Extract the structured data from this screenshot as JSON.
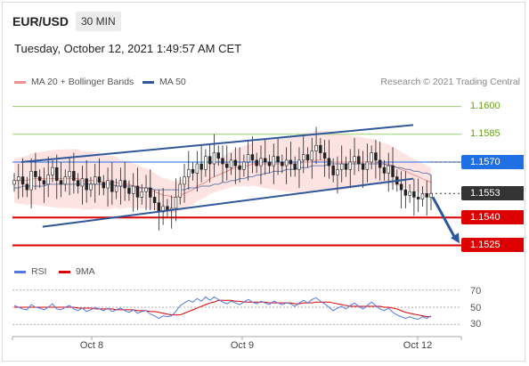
{
  "header": {
    "pair": "EUR/USD",
    "timeframe": "30 MIN",
    "timestamp": "Tuesday, October 12, 2021 1:49:57 AM CET"
  },
  "legend": {
    "ma20": "MA 20 + Bollinger Bands",
    "ma50": "MA 50",
    "credit": "Research © 2021 Trading Central",
    "rsi": "RSI",
    "rsi_ma": "9MA"
  },
  "colors": {
    "ma20": "#e9928f",
    "ma50": "#2f579b",
    "support": "#dd0000",
    "resistance": "#9bd06b",
    "pivot": "#1f6fe5",
    "last": "#333333",
    "rsi": "#5577dd",
    "rsi_ma": "#dd0000"
  },
  "chart_data": [
    {
      "type": "candlestick",
      "x_ticks": [
        "Oct 8",
        "Oct 9",
        "Oct 12"
      ],
      "y_axis": {
        "min": 1.1518,
        "max": 1.1608
      },
      "levels": [
        {
          "value": 1.16,
          "label": "1.1600",
          "kind": "resistance"
        },
        {
          "value": 1.1585,
          "label": "1.1585",
          "kind": "resistance"
        },
        {
          "value": 1.157,
          "label": "1.1570",
          "kind": "pivot"
        },
        {
          "value": 1.1553,
          "label": "1.1553",
          "kind": "last"
        },
        {
          "value": 1.154,
          "label": "1.1540",
          "kind": "support"
        },
        {
          "value": 1.1525,
          "label": "1.1525",
          "kind": "support"
        }
      ],
      "close": [
        1.156,
        1.1562,
        1.1558,
        1.1555,
        1.1565,
        1.1562,
        1.156,
        1.1558,
        1.1563,
        1.1567,
        1.156,
        1.1558,
        1.1562,
        1.1565,
        1.156,
        1.1557,
        1.1561,
        1.1555,
        1.1558,
        1.1562,
        1.1559,
        1.1556,
        1.156,
        1.1554,
        1.1557,
        1.156,
        1.1556,
        1.1553,
        1.1557,
        1.1551,
        1.1554,
        1.1556,
        1.1551,
        1.1548,
        1.1543,
        1.1546,
        1.1544,
        1.1545,
        1.1551,
        1.1558,
        1.1562,
        1.1566,
        1.1564,
        1.1569,
        1.1566,
        1.1573,
        1.1569,
        1.1575,
        1.1572,
        1.1569,
        1.1567,
        1.1571,
        1.1568,
        1.1566,
        1.157,
        1.1574,
        1.1571,
        1.1568,
        1.1572,
        1.157,
        1.1568,
        1.1573,
        1.157,
        1.1568,
        1.1571,
        1.1569,
        1.1566,
        1.1571,
        1.1574,
        1.1571,
        1.1576,
        1.1579,
        1.1575,
        1.1572,
        1.1568,
        1.1563,
        1.1566,
        1.1569,
        1.1566,
        1.157,
        1.1573,
        1.1569,
        1.1566,
        1.157,
        1.1575,
        1.1571,
        1.1567,
        1.1564,
        1.1568,
        1.1562,
        1.1558,
        1.1555,
        1.1552,
        1.1554,
        1.1551,
        1.155,
        1.1553,
        1.1551,
        1.1553
      ],
      "open": [
        1.1558,
        1.156,
        1.1562,
        1.1558,
        1.1555,
        1.1565,
        1.1562,
        1.156,
        1.1558,
        1.1563,
        1.1567,
        1.156,
        1.1558,
        1.1562,
        1.1565,
        1.156,
        1.1557,
        1.1561,
        1.1555,
        1.1558,
        1.1562,
        1.1559,
        1.1556,
        1.156,
        1.1554,
        1.1557,
        1.156,
        1.1556,
        1.1553,
        1.1557,
        1.1551,
        1.1554,
        1.1556,
        1.1551,
        1.1548,
        1.1543,
        1.1546,
        1.1544,
        1.1545,
        1.1551,
        1.1558,
        1.1562,
        1.1566,
        1.1564,
        1.1569,
        1.1566,
        1.1573,
        1.1569,
        1.1575,
        1.1572,
        1.1569,
        1.1567,
        1.1571,
        1.1568,
        1.1566,
        1.157,
        1.1574,
        1.1571,
        1.1568,
        1.1572,
        1.157,
        1.1568,
        1.1573,
        1.157,
        1.1568,
        1.1571,
        1.1569,
        1.1566,
        1.1571,
        1.1574,
        1.1571,
        1.1576,
        1.1579,
        1.1575,
        1.1572,
        1.1568,
        1.1563,
        1.1566,
        1.1569,
        1.1566,
        1.157,
        1.1573,
        1.1569,
        1.1566,
        1.157,
        1.1575,
        1.1571,
        1.1567,
        1.1564,
        1.1568,
        1.1562,
        1.1558,
        1.1555,
        1.1552,
        1.1554,
        1.1551,
        1.155,
        1.1553,
        1.1551
      ],
      "ma20": [
        1.156,
        1.156,
        1.156,
        1.156,
        1.1561,
        1.1561,
        1.1561,
        1.1561,
        1.1561,
        1.1561,
        1.1561,
        1.1561,
        1.1561,
        1.1561,
        1.1561,
        1.1561,
        1.156,
        1.156,
        1.156,
        1.156,
        1.156,
        1.1559,
        1.1559,
        1.1559,
        1.1559,
        1.1558,
        1.1558,
        1.1558,
        1.1557,
        1.1557,
        1.1556,
        1.1556,
        1.1555,
        1.1554,
        1.1553,
        1.1552,
        1.1552,
        1.1551,
        1.1551,
        1.1552,
        1.1553,
        1.1554,
        1.1555,
        1.1557,
        1.1558,
        1.1559,
        1.1561,
        1.1562,
        1.1563,
        1.1564,
        1.1565,
        1.1566,
        1.1567,
        1.1567,
        1.1568,
        1.1568,
        1.1569,
        1.1569,
        1.1569,
        1.1569,
        1.1569,
        1.1569,
        1.1569,
        1.1569,
        1.1569,
        1.1569,
        1.1569,
        1.1569,
        1.157,
        1.157,
        1.157,
        1.1571,
        1.1571,
        1.1571,
        1.1571,
        1.157,
        1.157,
        1.157,
        1.157,
        1.157,
        1.157,
        1.157,
        1.157,
        1.157,
        1.157,
        1.157,
        1.1569,
        1.1569,
        1.1569,
        1.1568,
        1.1567,
        1.1566,
        1.1565,
        1.1564,
        1.1563,
        1.1562,
        1.1561,
        1.156,
        1.1559
      ],
      "ma50": [
        1.1556,
        1.1556,
        1.1557,
        1.1557,
        1.1557,
        1.1557,
        1.1557,
        1.1557,
        1.1558,
        1.1558,
        1.1558,
        1.1558,
        1.1558,
        1.1558,
        1.1558,
        1.1558,
        1.1558,
        1.1558,
        1.1558,
        1.1558,
        1.1558,
        1.1558,
        1.1558,
        1.1558,
        1.1557,
        1.1557,
        1.1557,
        1.1557,
        1.1557,
        1.1556,
        1.1556,
        1.1556,
        1.1556,
        1.1555,
        1.1555,
        1.1555,
        1.1555,
        1.1555,
        1.1555,
        1.1555,
        1.1555,
        1.1556,
        1.1556,
        1.1556,
        1.1557,
        1.1557,
        1.1557,
        1.1558,
        1.1558,
        1.1559,
        1.1559,
        1.156,
        1.156,
        1.1561,
        1.1561,
        1.1562,
        1.1562,
        1.1563,
        1.1563,
        1.1564,
        1.1564,
        1.1565,
        1.1565,
        1.1565,
        1.1566,
        1.1566,
        1.1566,
        1.1567,
        1.1567,
        1.1567,
        1.1568,
        1.1568,
        1.1568,
        1.1568,
        1.1569,
        1.1569,
        1.1569,
        1.1569,
        1.1569,
        1.1569,
        1.1569,
        1.1569,
        1.1569,
        1.1569,
        1.1569,
        1.1569,
        1.1569,
        1.1569,
        1.1568,
        1.1568,
        1.1567,
        1.1567,
        1.1566,
        1.1566,
        1.1565,
        1.1565,
        1.1564,
        1.1564,
        1.1563
      ],
      "trendlines": [
        {
          "from": [
            0,
            1.157
          ],
          "to": [
            98,
            1.159
          ],
          "kind": "channel-top"
        },
        {
          "from": [
            5,
            1.1535
          ],
          "to": [
            98,
            1.1561
          ],
          "kind": "channel-bottom"
        }
      ],
      "projection": {
        "from": [
          98,
          1.1551
        ],
        "to": [
          104,
          1.1528
        ]
      }
    },
    {
      "type": "line",
      "y_ticks": [
        70,
        50,
        30
      ],
      "y_axis": {
        "min": 22,
        "max": 78
      },
      "series": [
        {
          "name": "RSI",
          "values": [
            52,
            50,
            48,
            47,
            53,
            50,
            49,
            47,
            50,
            54,
            48,
            47,
            50,
            52,
            48,
            46,
            49,
            45,
            47,
            50,
            48,
            46,
            49,
            45,
            47,
            49,
            46,
            44,
            47,
            43,
            45,
            46,
            42,
            40,
            37,
            40,
            39,
            40,
            45,
            52,
            55,
            58,
            56,
            60,
            57,
            62,
            58,
            62,
            59,
            56,
            54,
            57,
            55,
            53,
            56,
            59,
            56,
            54,
            57,
            55,
            53,
            57,
            55,
            53,
            55,
            54,
            51,
            55,
            58,
            55,
            59,
            61,
            57,
            54,
            50,
            46,
            49,
            51,
            48,
            52,
            55,
            51,
            48,
            52,
            56,
            52,
            48,
            46,
            49,
            44,
            41,
            39,
            37,
            39,
            37,
            36,
            39,
            37,
            40
          ]
        },
        {
          "name": "9MA",
          "values": [
            50,
            50,
            50,
            50,
            50,
            50,
            50,
            50,
            50,
            50,
            50,
            50,
            50,
            50,
            50,
            49,
            49,
            49,
            49,
            48,
            48,
            48,
            48,
            48,
            47,
            47,
            47,
            47,
            47,
            46,
            46,
            46,
            45,
            45,
            44,
            43,
            42,
            41,
            41,
            41,
            43,
            45,
            47,
            49,
            51,
            53,
            55,
            56,
            58,
            58,
            58,
            58,
            57,
            57,
            56,
            56,
            56,
            56,
            56,
            56,
            55,
            55,
            55,
            55,
            55,
            55,
            54,
            54,
            55,
            55,
            55,
            56,
            56,
            56,
            56,
            55,
            54,
            53,
            52,
            51,
            51,
            51,
            51,
            51,
            51,
            51,
            51,
            50,
            50,
            49,
            48,
            46,
            44,
            43,
            42,
            41,
            40,
            39,
            39
          ]
        }
      ]
    }
  ]
}
